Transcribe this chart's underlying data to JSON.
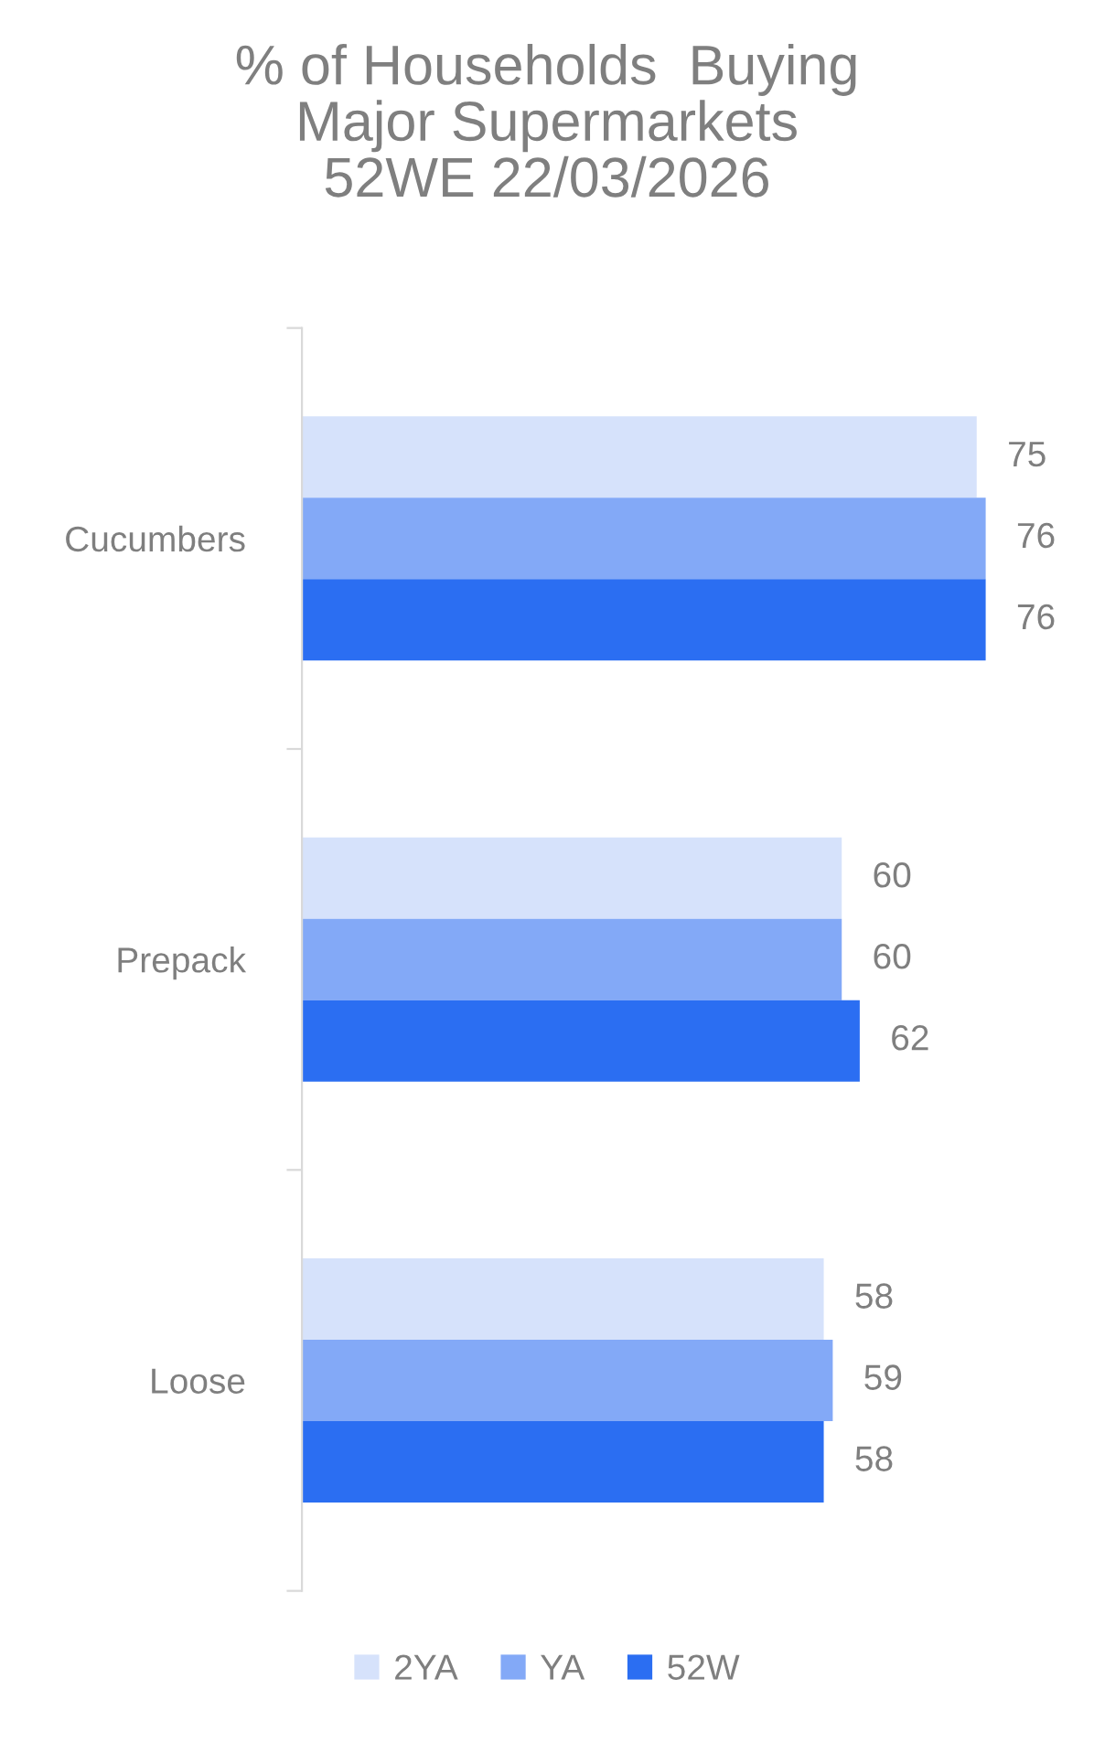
{
  "chart_data": {
    "type": "bar",
    "orientation": "horizontal",
    "title": "% of Households  Buying\nMajor Supermarkets\n52WE 22/03/2026",
    "categories": [
      "Cucumbers",
      "Prepack",
      "Loose"
    ],
    "series": [
      {
        "name": "2YA",
        "color": "#d6e2fb",
        "values": [
          75,
          60,
          58
        ]
      },
      {
        "name": "YA",
        "color": "#83a9f7",
        "values": [
          76,
          60,
          59
        ]
      },
      {
        "name": "52W",
        "color": "#2b6ef2",
        "values": [
          76,
          62,
          58
        ]
      }
    ],
    "data_labels": true,
    "grid": false,
    "legend": "bottom"
  }
}
